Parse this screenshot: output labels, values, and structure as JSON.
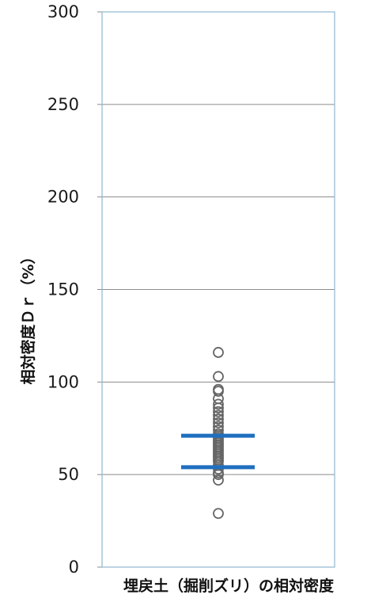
{
  "chart_data": {
    "type": "scatter",
    "title": "",
    "xlabel": "埋戻土（掘削ズリ）の相対密度",
    "ylabel": "相対密度Ｄｒ（%）",
    "ylim": [
      0,
      300
    ],
    "yticks": [
      0,
      50,
      100,
      150,
      200,
      250,
      300
    ],
    "grid": true,
    "legend": "none",
    "colors": {
      "points": "#666666",
      "lines": "#1f6fbf",
      "grid": "#8c8c8c",
      "frame": "#8fb8d0"
    },
    "series": [
      {
        "values": [
          116,
          103,
          96,
          95,
          91,
          88,
          86,
          84,
          82,
          80,
          78,
          76,
          74,
          72,
          71,
          70,
          69,
          68,
          67,
          66,
          65,
          64,
          63,
          62,
          61,
          60,
          59,
          58,
          57,
          55,
          53,
          51,
          50,
          47,
          29
        ]
      }
    ],
    "reference_lines": [
      71,
      54
    ]
  }
}
